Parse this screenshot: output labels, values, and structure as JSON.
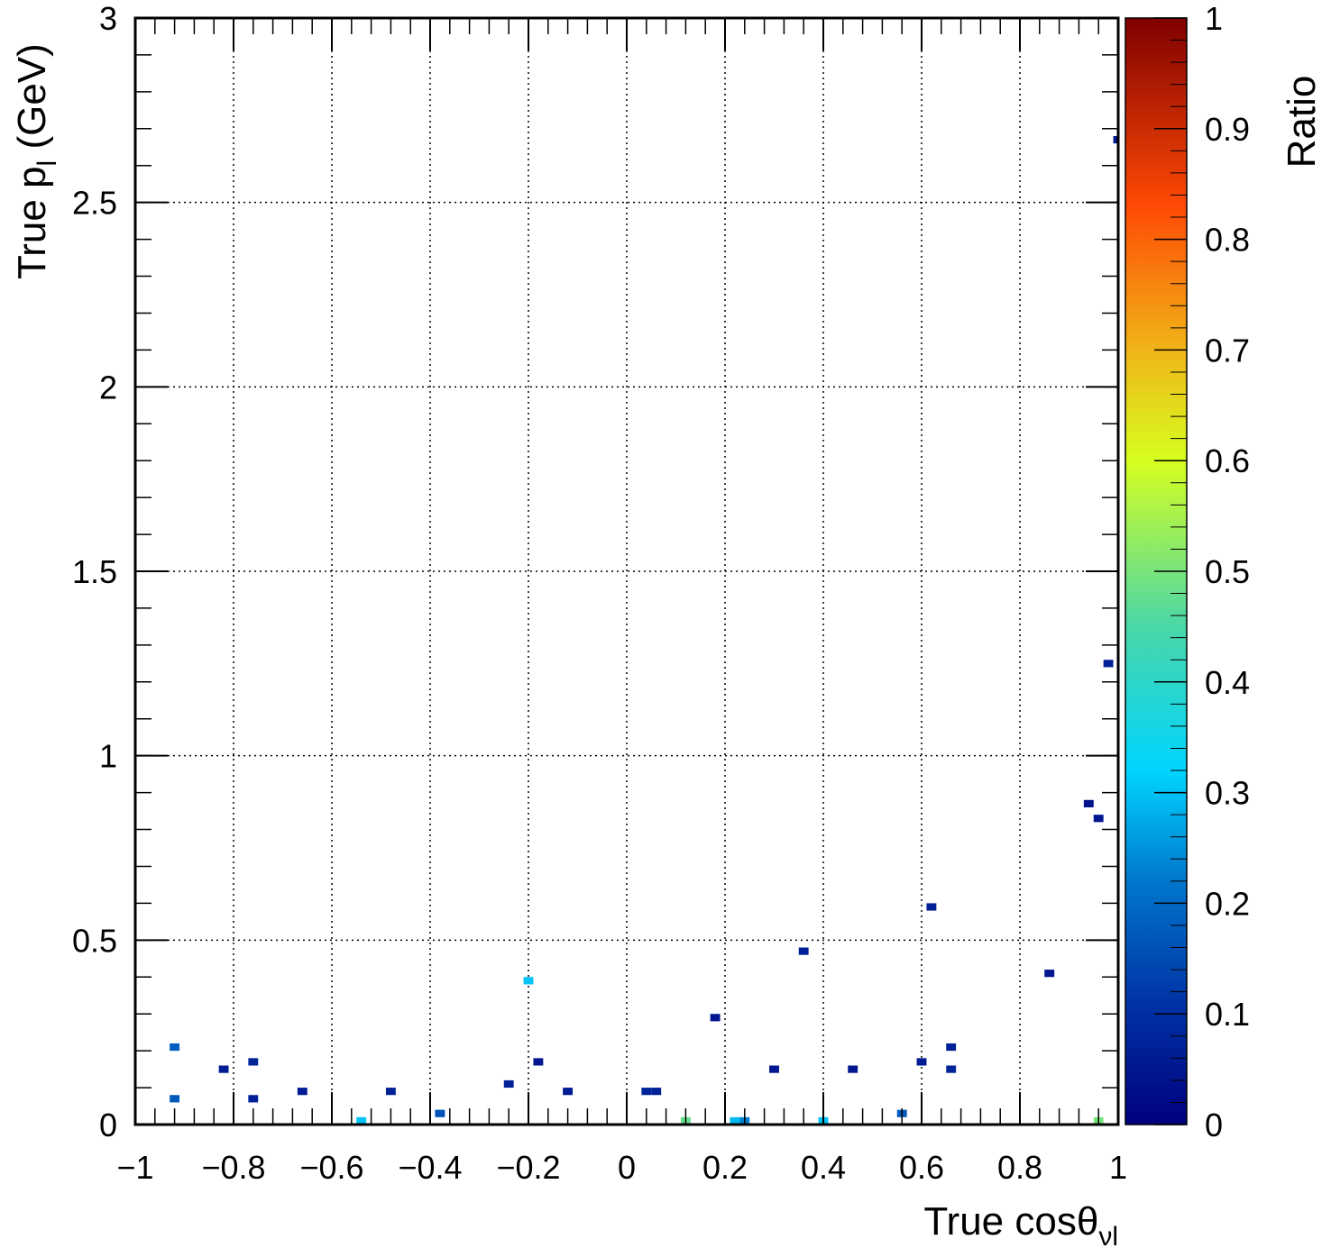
{
  "chart_data": {
    "type": "heatmap",
    "xlabel": {
      "main": "True cosθ",
      "sub": "νl"
    },
    "ylabel": {
      "main": "True p",
      "sub": "l",
      "suffix": " (GeV)"
    },
    "zlabel": "Ratio",
    "xlim": [
      -1,
      1
    ],
    "ylim": [
      0,
      3
    ],
    "zlim": [
      0,
      1
    ],
    "grid": true,
    "x_ticks": [
      {
        "v": -1,
        "label": "−1"
      },
      {
        "v": -0.8,
        "label": "−0.8"
      },
      {
        "v": -0.6,
        "label": "−0.6"
      },
      {
        "v": -0.4,
        "label": "−0.4"
      },
      {
        "v": -0.2,
        "label": "−0.2"
      },
      {
        "v": 0,
        "label": "0"
      },
      {
        "v": 0.2,
        "label": "0.2"
      },
      {
        "v": 0.4,
        "label": "0.4"
      },
      {
        "v": 0.6,
        "label": "0.6"
      },
      {
        "v": 0.8,
        "label": "0.8"
      },
      {
        "v": 1,
        "label": "1"
      }
    ],
    "y_ticks": [
      {
        "v": 0,
        "label": "0"
      },
      {
        "v": 0.5,
        "label": "0.5"
      },
      {
        "v": 1,
        "label": "1"
      },
      {
        "v": 1.5,
        "label": "1.5"
      },
      {
        "v": 2,
        "label": "2"
      },
      {
        "v": 2.5,
        "label": "2.5"
      },
      {
        "v": 3,
        "label": "3"
      }
    ],
    "z_ticks": [
      {
        "v": 0,
        "label": "0"
      },
      {
        "v": 0.1,
        "label": "0.1"
      },
      {
        "v": 0.2,
        "label": "0.2"
      },
      {
        "v": 0.3,
        "label": "0.3"
      },
      {
        "v": 0.4,
        "label": "0.4"
      },
      {
        "v": 0.5,
        "label": "0.5"
      },
      {
        "v": 0.6,
        "label": "0.6"
      },
      {
        "v": 0.7,
        "label": "0.7"
      },
      {
        "v": 0.8,
        "label": "0.8"
      },
      {
        "v": 0.9,
        "label": "0.9"
      },
      {
        "v": 1,
        "label": "1"
      }
    ],
    "bin_size": {
      "x": 0.02,
      "y": 0.02
    },
    "cells": [
      {
        "x": -0.92,
        "y": 0.21,
        "z": 0.18
      },
      {
        "x": -0.92,
        "y": 0.07,
        "z": 0.17
      },
      {
        "x": -0.82,
        "y": 0.15,
        "z": 0.06
      },
      {
        "x": -0.76,
        "y": 0.17,
        "z": 0.08
      },
      {
        "x": -0.76,
        "y": 0.07,
        "z": 0.07
      },
      {
        "x": -0.66,
        "y": 0.09,
        "z": 0.06
      },
      {
        "x": -0.54,
        "y": 0.01,
        "z": 0.3
      },
      {
        "x": -0.48,
        "y": 0.09,
        "z": 0.07
      },
      {
        "x": -0.38,
        "y": 0.03,
        "z": 0.16
      },
      {
        "x": -0.24,
        "y": 0.11,
        "z": 0.07
      },
      {
        "x": -0.2,
        "y": 0.39,
        "z": 0.3
      },
      {
        "x": -0.18,
        "y": 0.17,
        "z": 0.05
      },
      {
        "x": -0.12,
        "y": 0.09,
        "z": 0.06
      },
      {
        "x": 0.04,
        "y": 0.09,
        "z": 0.08
      },
      {
        "x": 0.06,
        "y": 0.09,
        "z": 0.07
      },
      {
        "x": 0.12,
        "y": 0.01,
        "z": 0.48
      },
      {
        "x": 0.18,
        "y": 0.29,
        "z": 0.05
      },
      {
        "x": 0.22,
        "y": 0.01,
        "z": 0.29
      },
      {
        "x": 0.24,
        "y": 0.01,
        "z": 0.23
      },
      {
        "x": 0.3,
        "y": 0.15,
        "z": 0.05
      },
      {
        "x": 0.36,
        "y": 0.47,
        "z": 0.07
      },
      {
        "x": 0.4,
        "y": 0.01,
        "z": 0.3
      },
      {
        "x": 0.46,
        "y": 0.15,
        "z": 0.05
      },
      {
        "x": 0.56,
        "y": 0.03,
        "z": 0.17
      },
      {
        "x": 0.6,
        "y": 0.17,
        "z": 0.06
      },
      {
        "x": 0.62,
        "y": 0.59,
        "z": 0.07
      },
      {
        "x": 0.66,
        "y": 0.21,
        "z": 0.07
      },
      {
        "x": 0.66,
        "y": 0.15,
        "z": 0.08
      },
      {
        "x": 0.86,
        "y": 0.41,
        "z": 0.05
      },
      {
        "x": 0.94,
        "y": 0.87,
        "z": 0.04
      },
      {
        "x": 0.96,
        "y": 0.83,
        "z": 0.05
      },
      {
        "x": 0.96,
        "y": 0.01,
        "z": 0.5
      },
      {
        "x": 0.98,
        "y": 1.25,
        "z": 0.07
      },
      {
        "x": 1.0,
        "y": 2.67,
        "z": 0.05
      }
    ]
  }
}
